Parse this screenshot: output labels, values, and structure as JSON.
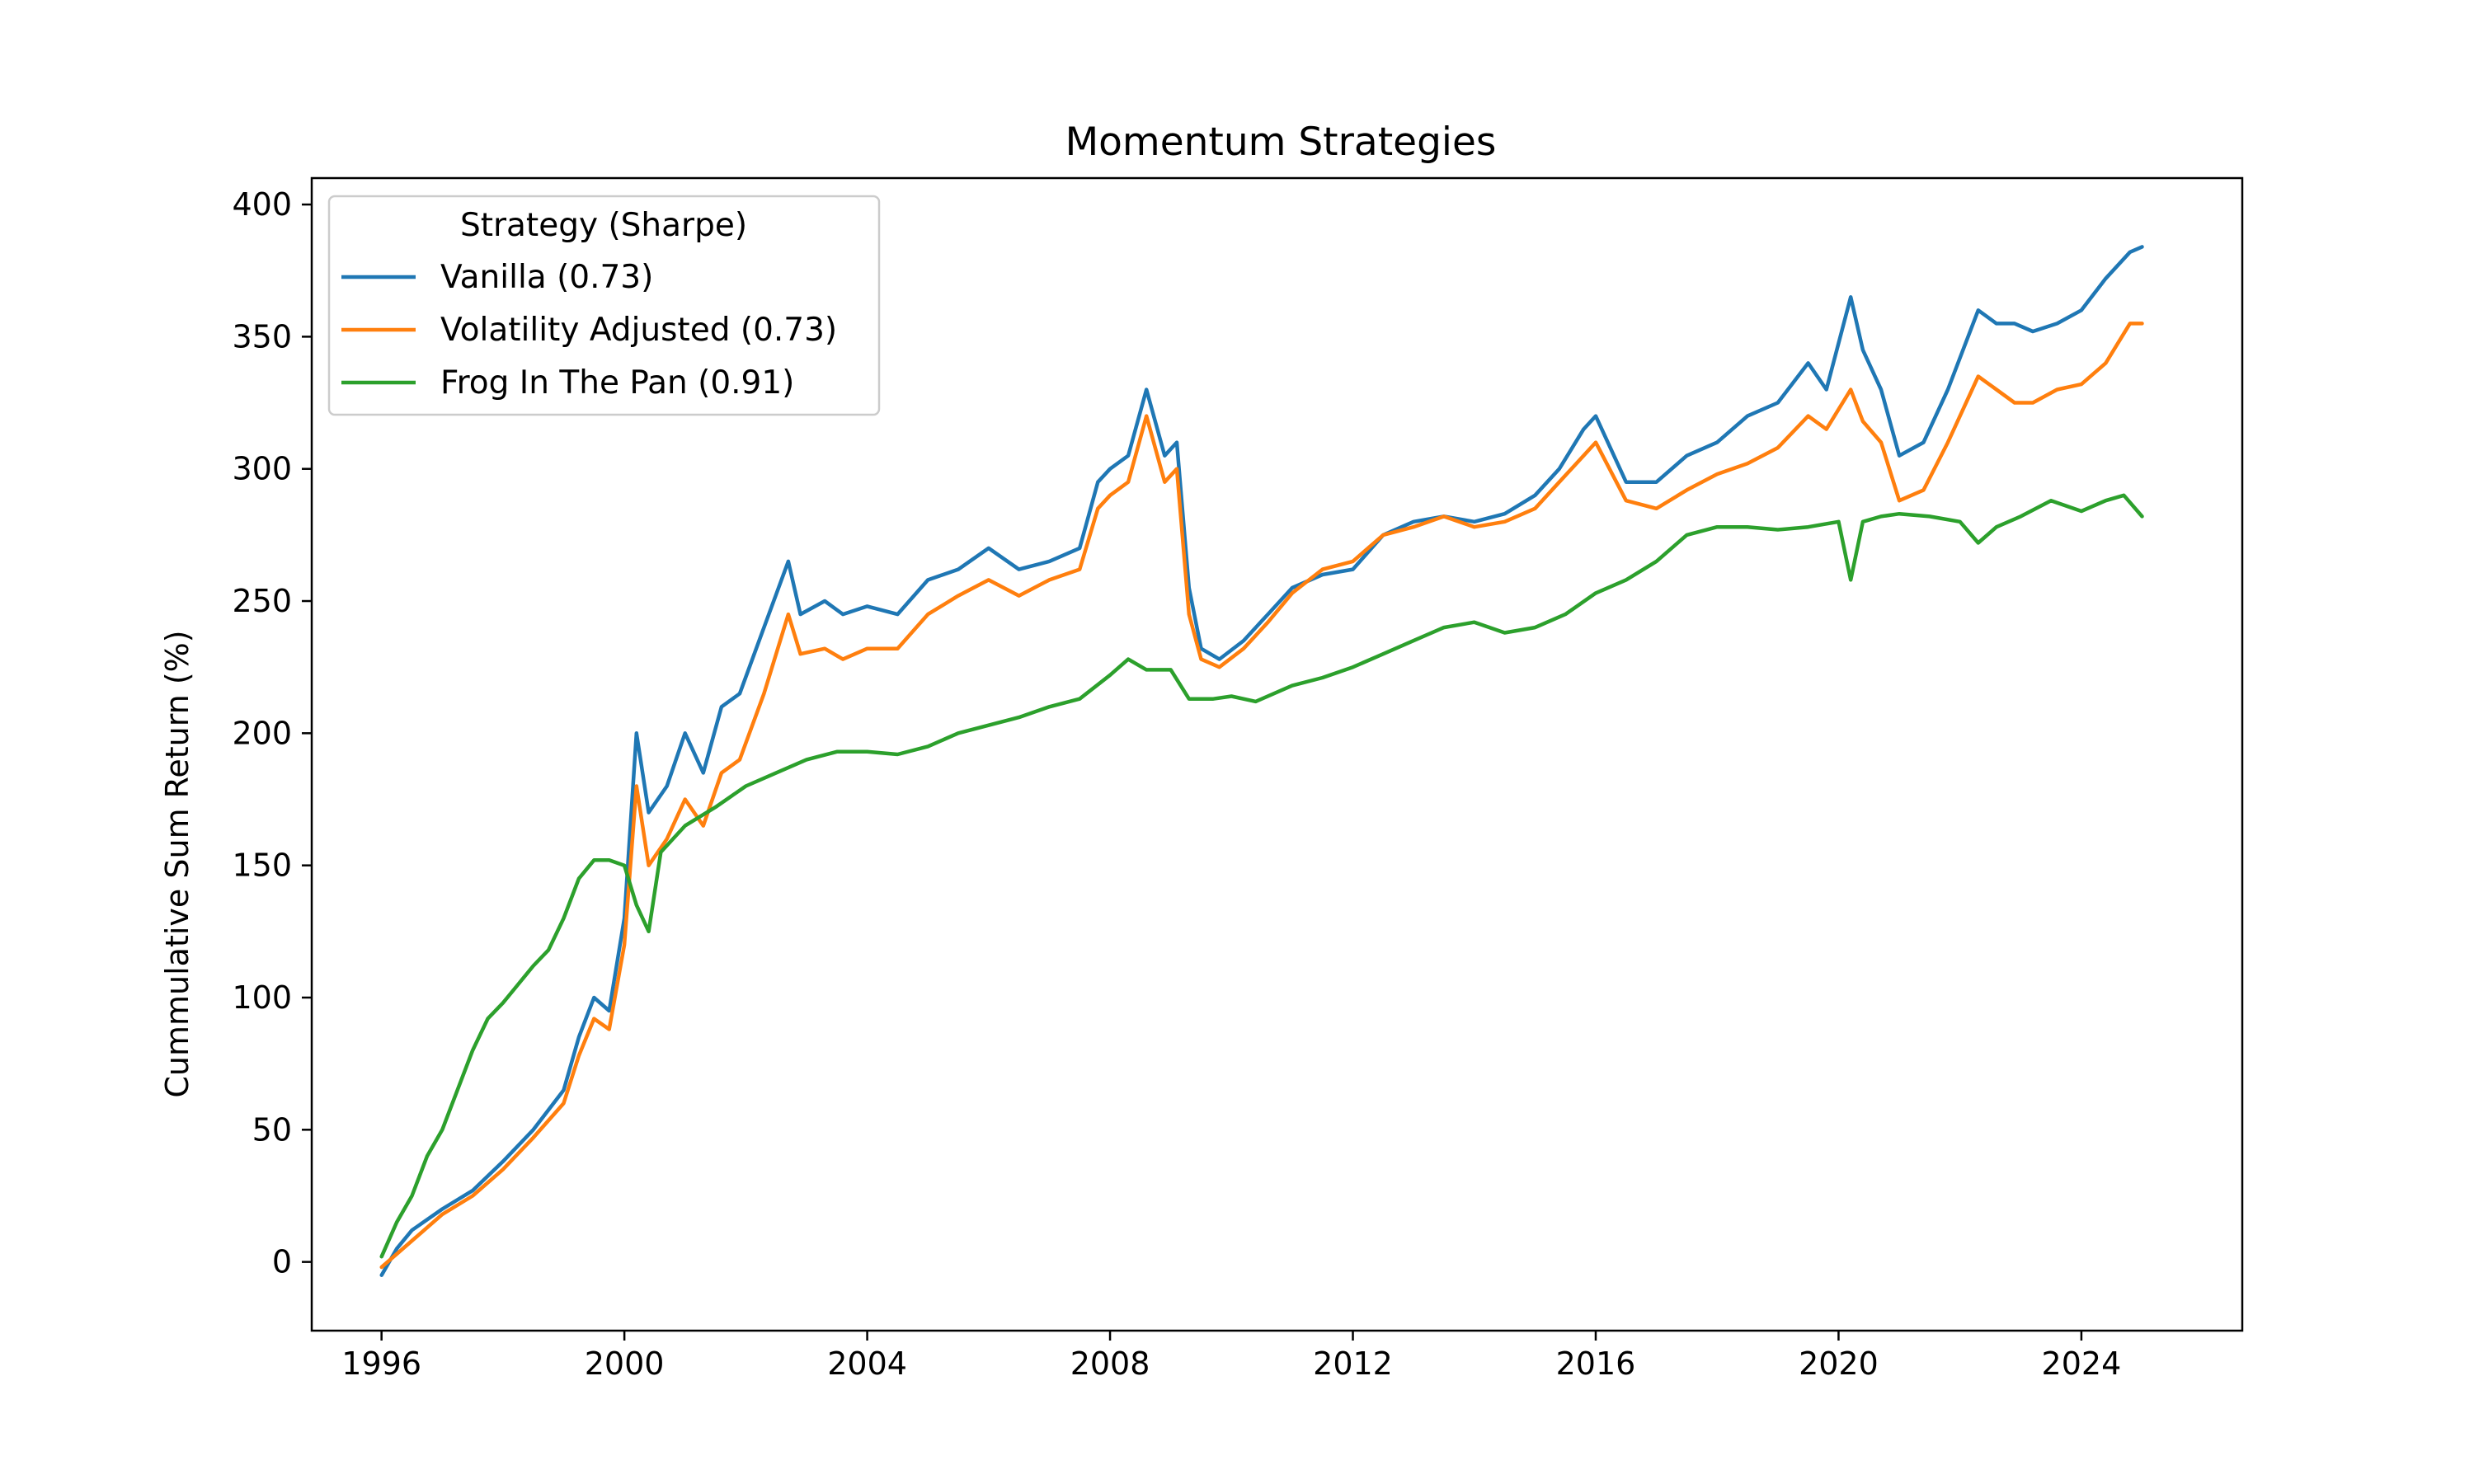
{
  "chart_data": {
    "type": "line",
    "title": "Momentum Strategies",
    "xlabel": "",
    "ylabel": "Cummulative Sum Return (%)",
    "xlim": [
      1994.85,
      2026.65
    ],
    "ylim": [
      -26,
      410
    ],
    "xticks": [
      1996,
      2000,
      2004,
      2008,
      2012,
      2016,
      2020,
      2024
    ],
    "xtick_labels": [
      "1996",
      "2000",
      "2004",
      "2008",
      "2012",
      "2016",
      "2020",
      "2024"
    ],
    "yticks": [
      0,
      50,
      100,
      150,
      200,
      250,
      300,
      350,
      400
    ],
    "ytick_labels": [
      "0",
      "50",
      "100",
      "150",
      "200",
      "250",
      "300",
      "350",
      "400"
    ],
    "grid": false,
    "legend": {
      "title": "Strategy (Sharpe)",
      "placement": "upper-left"
    },
    "series": [
      {
        "name": "Vanilla (0.73)",
        "color": "#1f77b4",
        "x": [
          1996.0,
          1996.25,
          1996.5,
          1997.0,
          1997.5,
          1998.0,
          1998.5,
          1999.0,
          1999.25,
          1999.5,
          1999.75,
          2000.0,
          2000.2,
          2000.4,
          2000.7,
          2001.0,
          2001.3,
          2001.6,
          2001.9,
          2002.3,
          2002.7,
          2002.9,
          2003.3,
          2003.6,
          2004.0,
          2004.5,
          2005.0,
          2005.5,
          2006.0,
          2006.5,
          2007.0,
          2007.5,
          2007.8,
          2008.0,
          2008.3,
          2008.6,
          2008.9,
          2009.1,
          2009.3,
          2009.5,
          2009.8,
          2010.2,
          2010.6,
          2011.0,
          2011.5,
          2012.0,
          2012.5,
          2013.0,
          2013.5,
          2014.0,
          2014.5,
          2015.0,
          2015.4,
          2015.8,
          2016.0,
          2016.5,
          2017.0,
          2017.5,
          2018.0,
          2018.5,
          2019.0,
          2019.5,
          2019.8,
          2020.2,
          2020.4,
          2020.7,
          2021.0,
          2021.4,
          2021.8,
          2022.3,
          2022.6,
          2022.9,
          2023.2,
          2023.6,
          2024.0,
          2024.4,
          2024.8,
          2025.0
        ],
        "y": [
          -5,
          5,
          12,
          20,
          27,
          38,
          50,
          65,
          85,
          100,
          95,
          130,
          200,
          170,
          180,
          200,
          185,
          210,
          215,
          240,
          265,
          245,
          250,
          245,
          248,
          245,
          258,
          262,
          270,
          262,
          265,
          270,
          295,
          300,
          305,
          330,
          305,
          310,
          255,
          232,
          228,
          235,
          245,
          255,
          260,
          262,
          275,
          280,
          282,
          280,
          283,
          290,
          300,
          315,
          320,
          295,
          295,
          305,
          310,
          320,
          325,
          340,
          330,
          365,
          345,
          330,
          305,
          310,
          330,
          360,
          355,
          355,
          352,
          355,
          360,
          372,
          382,
          384
        ]
      },
      {
        "name": "Volatility Adjusted (0.73)",
        "color": "#ff7f0e",
        "x": [
          1996.0,
          1996.25,
          1996.5,
          1997.0,
          1997.5,
          1998.0,
          1998.5,
          1999.0,
          1999.25,
          1999.5,
          1999.75,
          2000.0,
          2000.2,
          2000.4,
          2000.7,
          2001.0,
          2001.3,
          2001.6,
          2001.9,
          2002.3,
          2002.7,
          2002.9,
          2003.3,
          2003.6,
          2004.0,
          2004.5,
          2005.0,
          2005.5,
          2006.0,
          2006.5,
          2007.0,
          2007.5,
          2007.8,
          2008.0,
          2008.3,
          2008.6,
          2008.9,
          2009.1,
          2009.3,
          2009.5,
          2009.8,
          2010.2,
          2010.6,
          2011.0,
          2011.5,
          2012.0,
          2012.5,
          2013.0,
          2013.5,
          2014.0,
          2014.5,
          2015.0,
          2015.4,
          2015.8,
          2016.0,
          2016.5,
          2017.0,
          2017.5,
          2018.0,
          2018.5,
          2019.0,
          2019.5,
          2019.8,
          2020.2,
          2020.4,
          2020.7,
          2021.0,
          2021.4,
          2021.8,
          2022.3,
          2022.6,
          2022.9,
          2023.2,
          2023.6,
          2024.0,
          2024.4,
          2024.8,
          2025.0
        ],
        "y": [
          -2,
          3,
          8,
          18,
          25,
          35,
          47,
          60,
          78,
          92,
          88,
          120,
          180,
          150,
          160,
          175,
          165,
          185,
          190,
          215,
          245,
          230,
          232,
          228,
          232,
          232,
          245,
          252,
          258,
          252,
          258,
          262,
          285,
          290,
          295,
          320,
          295,
          300,
          245,
          228,
          225,
          232,
          242,
          253,
          262,
          265,
          275,
          278,
          282,
          278,
          280,
          285,
          295,
          305,
          310,
          288,
          285,
          292,
          298,
          302,
          308,
          320,
          315,
          330,
          318,
          310,
          288,
          292,
          310,
          335,
          330,
          325,
          325,
          330,
          332,
          340,
          355,
          355
        ]
      },
      {
        "name": "Frog In The Pan (0.91)",
        "color": "#2ca02c",
        "x": [
          1996.0,
          1996.25,
          1996.5,
          1996.75,
          1997.0,
          1997.25,
          1997.5,
          1997.75,
          1998.0,
          1998.25,
          1998.5,
          1998.75,
          1999.0,
          1999.25,
          1999.5,
          1999.75,
          2000.0,
          2000.2,
          2000.4,
          2000.6,
          2000.8,
          2001.0,
          2001.5,
          2002.0,
          2002.5,
          2003.0,
          2003.5,
          2004.0,
          2004.5,
          2005.0,
          2005.5,
          2006.0,
          2006.5,
          2007.0,
          2007.5,
          2008.0,
          2008.3,
          2008.6,
          2009.0,
          2009.3,
          2009.7,
          2010.0,
          2010.4,
          2011.0,
          2011.5,
          2012.0,
          2012.5,
          2013.0,
          2013.5,
          2014.0,
          2014.5,
          2015.0,
          2015.5,
          2016.0,
          2016.5,
          2017.0,
          2017.5,
          2018.0,
          2018.5,
          2019.0,
          2019.5,
          2020.0,
          2020.2,
          2020.4,
          2020.7,
          2021.0,
          2021.5,
          2022.0,
          2022.3,
          2022.6,
          2023.0,
          2023.5,
          2024.0,
          2024.4,
          2024.7,
          2025.0
        ],
        "y": [
          2,
          15,
          25,
          40,
          50,
          65,
          80,
          92,
          98,
          105,
          112,
          118,
          130,
          145,
          152,
          152,
          150,
          135,
          125,
          155,
          160,
          165,
          172,
          180,
          185,
          190,
          193,
          193,
          192,
          195,
          200,
          203,
          206,
          210,
          213,
          222,
          228,
          224,
          224,
          213,
          213,
          214,
          212,
          218,
          221,
          225,
          230,
          235,
          240,
          242,
          238,
          240,
          245,
          253,
          258,
          265,
          275,
          278,
          278,
          277,
          278,
          280,
          258,
          280,
          282,
          283,
          282,
          280,
          272,
          278,
          282,
          288,
          284,
          288,
          290,
          282
        ]
      }
    ]
  }
}
